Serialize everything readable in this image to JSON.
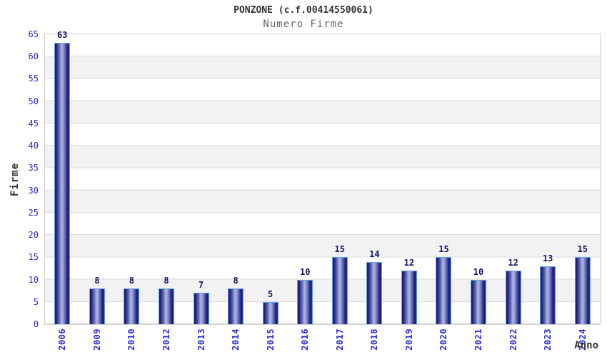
{
  "header": {
    "title": "PONZONE (c.f.00414550061)",
    "subtitle": "Numero Firme"
  },
  "chart_data": {
    "type": "bar",
    "title": "PONZONE (c.f.00414550061)",
    "subtitle": "Numero Firme",
    "xlabel": "Anno",
    "ylabel": "Firme",
    "categories": [
      "2006",
      "2009",
      "2010",
      "2012",
      "2013",
      "2014",
      "2015",
      "2016",
      "2017",
      "2018",
      "2019",
      "2020",
      "2021",
      "2022",
      "2023",
      "2024"
    ],
    "values": [
      63,
      8,
      8,
      8,
      7,
      8,
      5,
      10,
      15,
      14,
      12,
      15,
      10,
      12,
      13,
      15
    ],
    "ylim": [
      0,
      65
    ],
    "ytick_step": 5,
    "grid": "horizontal-bands-every-5",
    "legend": "none",
    "colors": {
      "bar_dark": "#191970",
      "bar_light": "#a9b1e1",
      "bar_outline": "#5fa2e2",
      "value_label": "#131366",
      "axis_tick_label": "#2b2bd0",
      "band_gray": "#f2f2f2",
      "band_white": "#ffffff",
      "gridline": "#dcdcdc",
      "plot_border": "#cfcfcf",
      "title_text": "#333333",
      "subtitle_text": "#666666"
    }
  }
}
